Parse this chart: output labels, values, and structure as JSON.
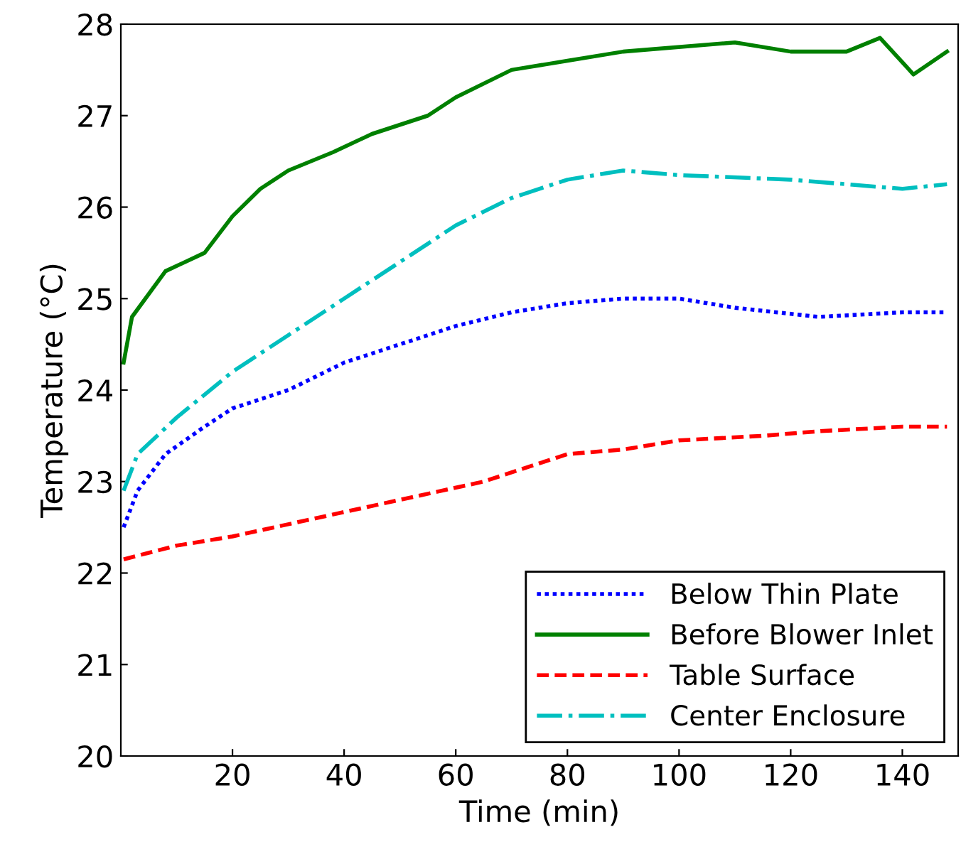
{
  "chart_data": {
    "type": "line",
    "xlabel": "Time (min)",
    "ylabel": "Temperature (°C)",
    "xlim": [
      0,
      150
    ],
    "ylim": [
      20,
      28
    ],
    "xticks": [
      20,
      40,
      60,
      80,
      100,
      120,
      140
    ],
    "yticks": [
      20,
      21,
      22,
      23,
      24,
      25,
      26,
      27,
      28
    ],
    "grid": false,
    "legend": "bottom right",
    "marker": "none",
    "series": [
      {
        "name": "Below Thin Plate",
        "color": "#0000ff",
        "line_style": "dotted",
        "x": [
          0.5,
          3,
          8,
          15,
          20,
          30,
          40,
          50,
          60,
          70,
          80,
          90,
          100,
          110,
          125,
          140,
          148
        ],
        "values": [
          22.5,
          22.9,
          23.3,
          23.6,
          23.8,
          24.0,
          24.3,
          24.5,
          24.7,
          24.85,
          24.95,
          25.0,
          25.0,
          24.9,
          24.8,
          24.85,
          24.85
        ]
      },
      {
        "name": "Before Blower Inlet",
        "color": "#008000",
        "line_style": "solid",
        "x": [
          0.5,
          2,
          8,
          15,
          20,
          25,
          30,
          38,
          45,
          55,
          60,
          70,
          80,
          90,
          110,
          120,
          130,
          136,
          142,
          148
        ],
        "values": [
          24.3,
          24.8,
          25.3,
          25.5,
          25.9,
          26.2,
          26.4,
          26.6,
          26.8,
          27.0,
          27.2,
          27.5,
          27.6,
          27.7,
          27.8,
          27.7,
          27.7,
          27.85,
          27.45,
          27.7
        ]
      },
      {
        "name": "Table Surface",
        "color": "#ff0000",
        "line_style": "dashed",
        "x": [
          0.5,
          10,
          20,
          35,
          50,
          65,
          80,
          90,
          100,
          115,
          125,
          140,
          148
        ],
        "values": [
          22.15,
          22.3,
          22.4,
          22.6,
          22.8,
          23.0,
          23.3,
          23.35,
          23.45,
          23.5,
          23.55,
          23.6,
          23.6
        ]
      },
      {
        "name": "Center Enclosure",
        "color": "#00bfbf",
        "line_style": "dashdot",
        "x": [
          0.5,
          3,
          10,
          20,
          30,
          40,
          50,
          60,
          70,
          80,
          90,
          100,
          120,
          130,
          140,
          148
        ],
        "values": [
          22.9,
          23.3,
          23.7,
          24.2,
          24.6,
          25.0,
          25.4,
          25.8,
          26.1,
          26.3,
          26.4,
          26.35,
          26.3,
          26.25,
          26.2,
          26.25
        ]
      }
    ]
  }
}
